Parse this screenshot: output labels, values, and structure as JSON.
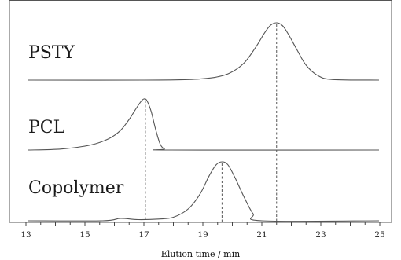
{
  "chart_data": {
    "type": "line",
    "xlabel": "Elution time / min",
    "xlim": [
      13,
      25
    ],
    "xticks": [
      "13",
      "15",
      "17",
      "19",
      "21",
      "23",
      "25"
    ],
    "grid": false,
    "series": [
      {
        "name": "PSTY",
        "peak_x": 21.5,
        "x": [
          13,
          17,
          18.5,
          19.3,
          19.9,
          20.4,
          20.8,
          21.1,
          21.3,
          21.5,
          21.7,
          21.9,
          22.2,
          22.5,
          22.9,
          23.4,
          25
        ],
        "y": [
          0,
          0,
          0.01,
          0.04,
          0.12,
          0.3,
          0.58,
          0.83,
          0.96,
          1.0,
          0.95,
          0.8,
          0.52,
          0.26,
          0.08,
          0.01,
          0
        ]
      },
      {
        "name": "PCL",
        "peak_x": 17.05,
        "x": [
          13,
          14.2,
          15.2,
          15.8,
          16.2,
          16.5,
          16.7,
          16.9,
          17.0,
          17.1,
          17.25,
          17.4,
          17.55,
          17.7,
          17.9,
          25
        ],
        "y": [
          0,
          0.02,
          0.1,
          0.22,
          0.38,
          0.6,
          0.78,
          0.95,
          1.0,
          0.97,
          0.75,
          0.4,
          0.12,
          0.02,
          0,
          0
        ]
      },
      {
        "name": "Copolymer",
        "peak_x": 19.65,
        "x": [
          13,
          15.6,
          16.2,
          16.8,
          17.5,
          18.0,
          18.5,
          18.9,
          19.2,
          19.45,
          19.65,
          19.85,
          20.1,
          20.4,
          20.7,
          21.0,
          25
        ],
        "y": [
          0,
          0,
          0.04,
          0.02,
          0.03,
          0.06,
          0.2,
          0.45,
          0.75,
          0.95,
          1.0,
          0.95,
          0.72,
          0.4,
          0.12,
          0,
          0
        ]
      }
    ]
  }
}
